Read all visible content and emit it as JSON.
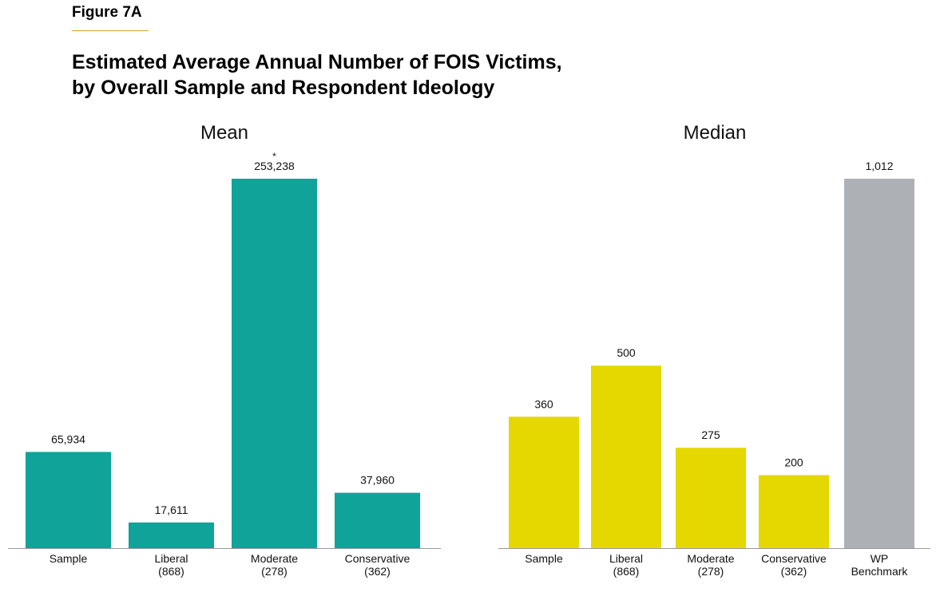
{
  "figure_label": "Figure 7A",
  "title_line1": "Estimated Average Annual Number of FOIS Victims,",
  "title_line2": "by Overall Sample and Respondent Ideology",
  "colors": {
    "teal": "#0fa39a",
    "yellow": "#e4d800",
    "gray": "#adb0b5",
    "accent_rule": "#e0a030"
  },
  "chart_data": [
    {
      "type": "bar",
      "title": "Mean",
      "categories": [
        [
          "Sample"
        ],
        [
          "Liberal",
          "(868)"
        ],
        [
          "Moderate",
          "(278)"
        ],
        [
          "Conservative",
          "(362)"
        ]
      ],
      "values": [
        65934,
        17611,
        253238,
        37960
      ],
      "value_labels": [
        "65,934",
        "17,611",
        "253,238",
        "37,960"
      ],
      "annotations": [
        {
          "category_index": 2,
          "text": "*"
        }
      ],
      "bar_colors": [
        "#0fa39a",
        "#0fa39a",
        "#0fa39a",
        "#0fa39a"
      ],
      "ylim": [
        0,
        253238
      ],
      "grid": false,
      "legend": "none"
    },
    {
      "type": "bar",
      "title": "Median",
      "categories": [
        [
          "Sample"
        ],
        [
          "Liberal",
          "(868)"
        ],
        [
          "Moderate",
          "(278)"
        ],
        [
          "Conservative",
          "(362)"
        ],
        [
          "WP",
          "Benchmark"
        ]
      ],
      "values": [
        360,
        500,
        275,
        200,
        1012
      ],
      "value_labels": [
        "360",
        "500",
        "275",
        "200",
        "1,012"
      ],
      "bar_colors": [
        "#e4d800",
        "#e4d800",
        "#e4d800",
        "#e4d800",
        "#adb0b5"
      ],
      "ylim": [
        0,
        1012
      ],
      "grid": false,
      "legend": "none"
    }
  ]
}
